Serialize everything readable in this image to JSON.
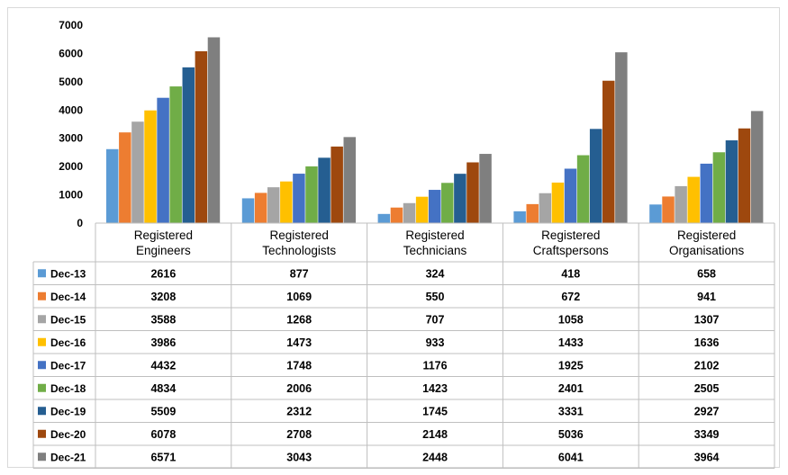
{
  "chart_data": {
    "type": "bar",
    "categories": [
      "Registered Engineers",
      "Registered Technologists",
      "Registered Technicians",
      "Registered Craftspersons",
      "Registered Organisations"
    ],
    "category_lines": [
      [
        "Registered",
        "Engineers"
      ],
      [
        "Registered",
        "Technologists"
      ],
      [
        "Registered",
        "Technicians"
      ],
      [
        "Registered",
        "Craftspersons"
      ],
      [
        "Registered",
        "Organisations"
      ]
    ],
    "series": [
      {
        "name": "Dec-13",
        "color": "#5b9bd5",
        "values": [
          2616,
          877,
          324,
          418,
          658
        ]
      },
      {
        "name": "Dec-14",
        "color": "#ed7d31",
        "values": [
          3208,
          1069,
          550,
          672,
          941
        ]
      },
      {
        "name": "Dec-15",
        "color": "#a5a5a5",
        "values": [
          3588,
          1268,
          707,
          1058,
          1307
        ]
      },
      {
        "name": "Dec-16",
        "color": "#ffc000",
        "values": [
          3986,
          1473,
          933,
          1433,
          1636
        ]
      },
      {
        "name": "Dec-17",
        "color": "#4472c4",
        "values": [
          4432,
          1748,
          1176,
          1925,
          2102
        ]
      },
      {
        "name": "Dec-18",
        "color": "#70ad47",
        "values": [
          4834,
          2006,
          1423,
          2401,
          2505
        ]
      },
      {
        "name": "Dec-19",
        "color": "#255e91",
        "values": [
          5509,
          2312,
          1745,
          3331,
          2927
        ]
      },
      {
        "name": "Dec-20",
        "color": "#9e480e",
        "values": [
          6078,
          2708,
          2148,
          5036,
          3349
        ]
      },
      {
        "name": "Dec-21",
        "color": "#7f7f7f",
        "values": [
          6571,
          3043,
          2448,
          6041,
          3964
        ]
      }
    ],
    "yticks": [
      "0",
      "1000",
      "2000",
      "3000",
      "4000",
      "5000",
      "6000",
      "7000"
    ],
    "ylim": [
      0,
      7000
    ],
    "grid": false,
    "legend": "data table below chart"
  }
}
